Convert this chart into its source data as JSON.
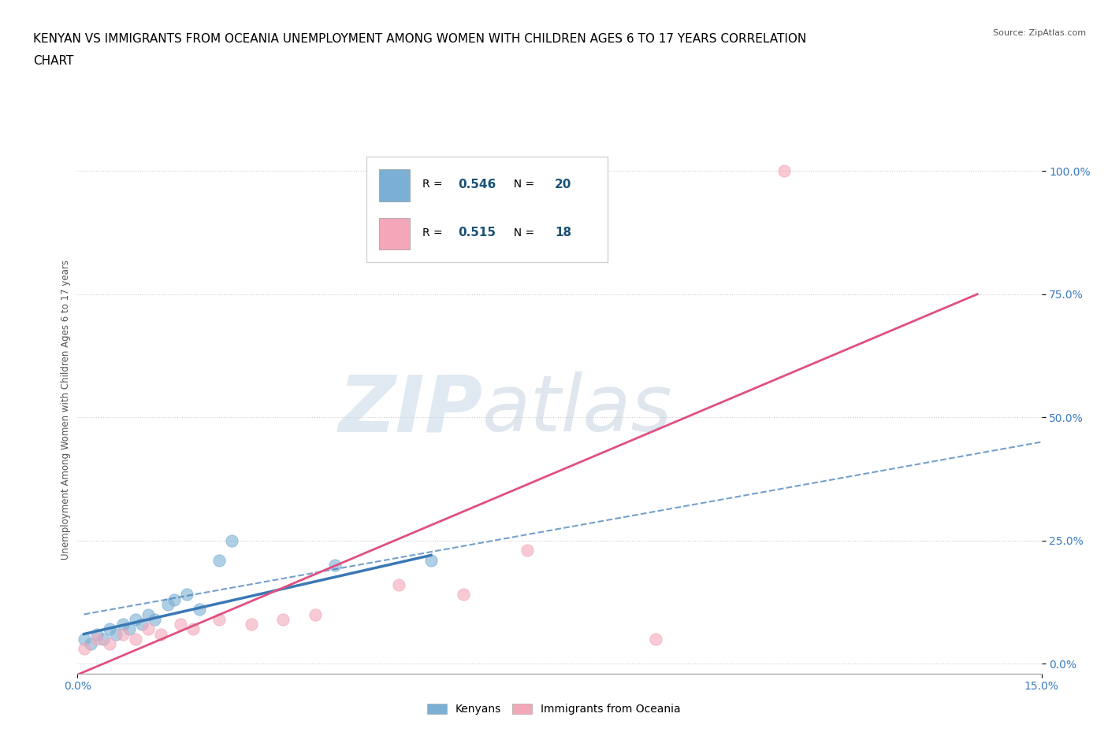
{
  "title_line1": "KENYAN VS IMMIGRANTS FROM OCEANIA UNEMPLOYMENT AMONG WOMEN WITH CHILDREN AGES 6 TO 17 YEARS CORRELATION",
  "title_line2": "CHART",
  "source": "Source: ZipAtlas.com",
  "ylabel_label": "Unemployment Among Women with Children Ages 6 to 17 years",
  "xlim": [
    0.0,
    0.15
  ],
  "ylim": [
    -0.02,
    1.05
  ],
  "kenyan_scatter": [
    [
      0.001,
      0.05
    ],
    [
      0.002,
      0.04
    ],
    [
      0.003,
      0.06
    ],
    [
      0.004,
      0.05
    ],
    [
      0.005,
      0.07
    ],
    [
      0.006,
      0.06
    ],
    [
      0.007,
      0.08
    ],
    [
      0.008,
      0.07
    ],
    [
      0.009,
      0.09
    ],
    [
      0.01,
      0.08
    ],
    [
      0.011,
      0.1
    ],
    [
      0.012,
      0.09
    ],
    [
      0.014,
      0.12
    ],
    [
      0.015,
      0.13
    ],
    [
      0.017,
      0.14
    ],
    [
      0.019,
      0.11
    ],
    [
      0.022,
      0.21
    ],
    [
      0.024,
      0.25
    ],
    [
      0.04,
      0.2
    ],
    [
      0.055,
      0.21
    ]
  ],
  "oceania_scatter": [
    [
      0.001,
      0.03
    ],
    [
      0.003,
      0.05
    ],
    [
      0.005,
      0.04
    ],
    [
      0.007,
      0.06
    ],
    [
      0.009,
      0.05
    ],
    [
      0.011,
      0.07
    ],
    [
      0.013,
      0.06
    ],
    [
      0.016,
      0.08
    ],
    [
      0.018,
      0.07
    ],
    [
      0.022,
      0.09
    ],
    [
      0.027,
      0.08
    ],
    [
      0.032,
      0.09
    ],
    [
      0.037,
      0.1
    ],
    [
      0.05,
      0.16
    ],
    [
      0.06,
      0.14
    ],
    [
      0.07,
      0.23
    ],
    [
      0.09,
      0.05
    ],
    [
      0.11,
      1.0
    ]
  ],
  "kenyan_solid_line": [
    [
      0.001,
      0.06
    ],
    [
      0.055,
      0.22
    ]
  ],
  "kenyan_dashed_line": [
    [
      0.001,
      0.1
    ],
    [
      0.15,
      0.45
    ]
  ],
  "oceania_solid_line": [
    [
      -0.005,
      -0.05
    ],
    [
      0.14,
      0.75
    ]
  ],
  "kenyan_color": "#7BAFD4",
  "oceania_color": "#F4A7B9",
  "kenyan_line_color": "#3a78b5",
  "oceania_line_color": "#e05080",
  "kenyan_R": "0.546",
  "kenyan_N": "20",
  "oceania_R": "0.515",
  "oceania_N": "18",
  "watermark_zip": "ZIP",
  "watermark_atlas": "atlas",
  "background_color": "#ffffff",
  "grid_color": "#cccccc",
  "title_color": "#000000",
  "legend_R_color": "#1a5276",
  "title_fontsize": 11,
  "source_fontsize": 8
}
